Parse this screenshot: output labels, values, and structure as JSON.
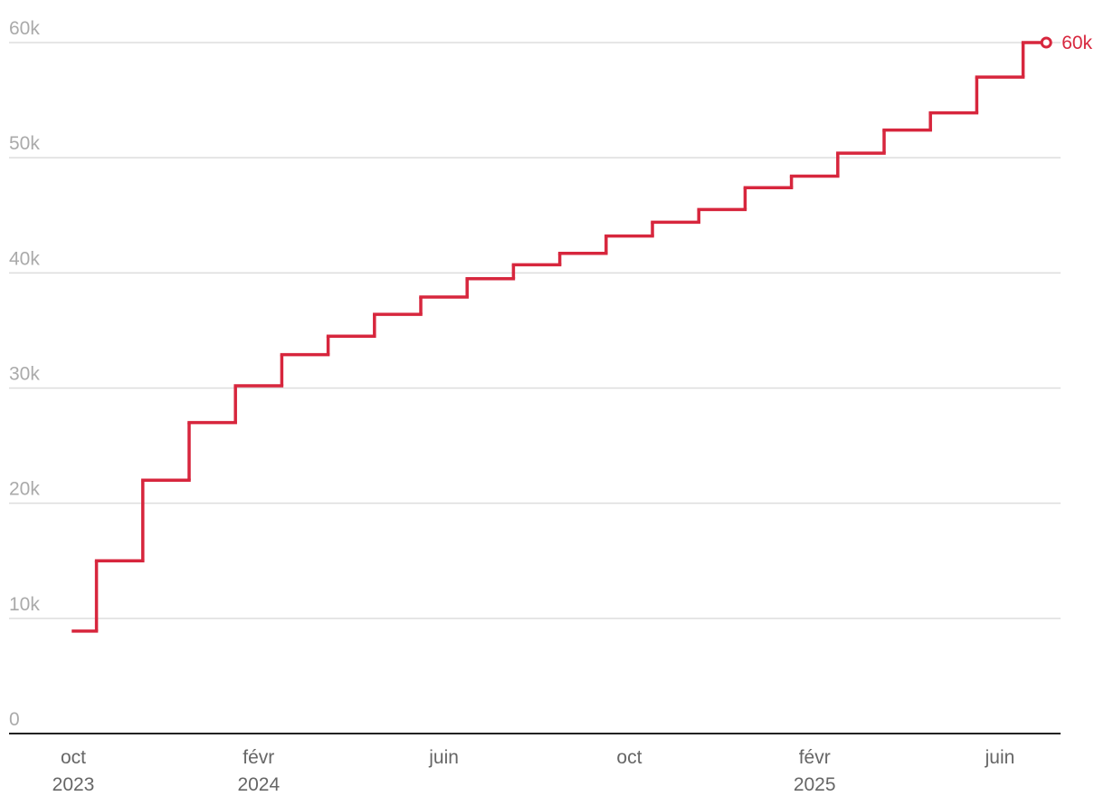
{
  "chart_data": {
    "type": "step-line",
    "x": [
      "2023-10",
      "2023-11",
      "2023-12",
      "2024-01",
      "2024-02",
      "2024-03",
      "2024-04",
      "2024-05",
      "2024-06",
      "2024-07",
      "2024-08",
      "2024-09",
      "2024-10",
      "2024-11",
      "2024-12",
      "2025-01",
      "2025-02",
      "2025-03",
      "2025-04",
      "2025-05",
      "2025-06",
      "2025-07"
    ],
    "series": [
      {
        "color": "#d7263d",
        "values": [
          8900,
          15000,
          22000,
          27000,
          30200,
          32900,
          34500,
          36400,
          37900,
          39500,
          40700,
          41700,
          43200,
          44400,
          45500,
          47400,
          48400,
          50400,
          52400,
          53900,
          57000,
          60000
        ],
        "end_label": "60k"
      }
    ],
    "ylim": [
      0,
      60000
    ],
    "yticks": [
      0,
      {
        "value": 10000,
        "label": "10k"
      },
      {
        "value": 20000,
        "label": "20k"
      },
      {
        "value": 30000,
        "label": "30k"
      },
      {
        "value": 40000,
        "label": "40k"
      },
      {
        "value": 50000,
        "label": "50k"
      },
      {
        "value": 60000,
        "label": "60k"
      }
    ],
    "xticks": [
      {
        "value": "2023-10",
        "label": "oct",
        "year": "2023"
      },
      {
        "value": "2024-02",
        "label": "févr",
        "year": "2024"
      },
      {
        "value": "2024-06",
        "label": "juin"
      },
      {
        "value": "2024-10",
        "label": "oct"
      },
      {
        "value": "2025-02",
        "label": "févr",
        "year": "2025"
      },
      {
        "value": "2025-06",
        "label": "juin"
      }
    ],
    "grid": true
  }
}
